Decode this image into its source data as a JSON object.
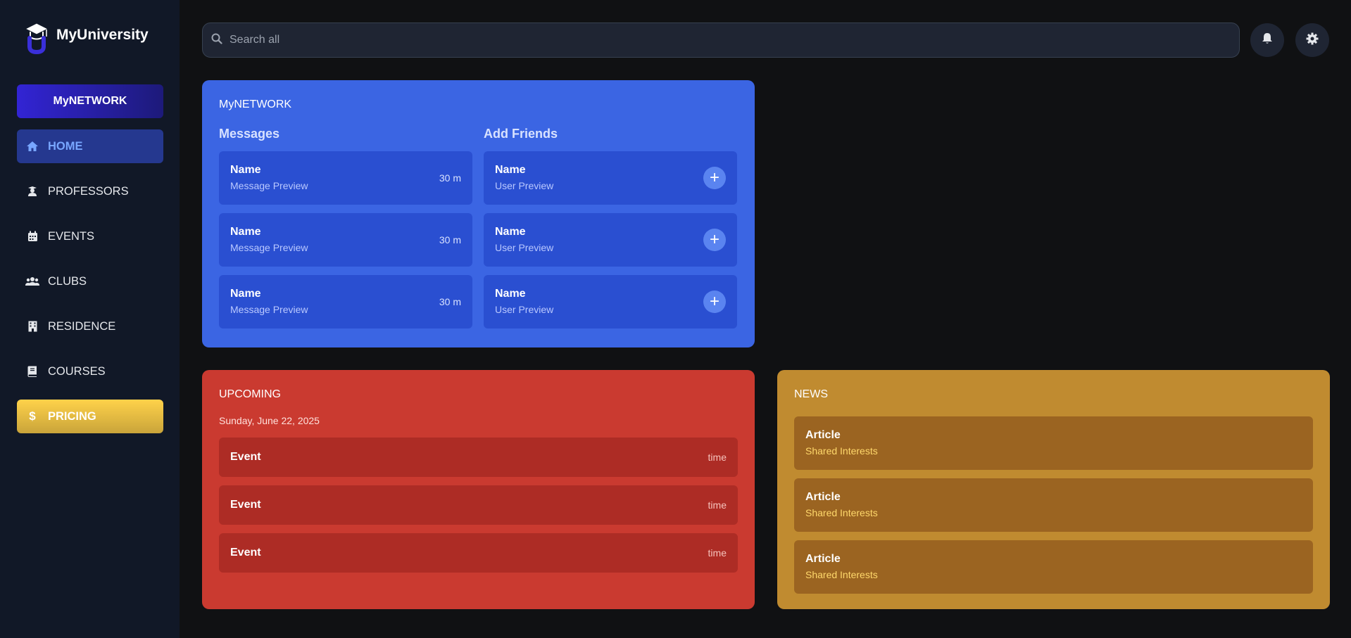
{
  "app": {
    "title": "MyUniversity"
  },
  "sidebar": {
    "network_label": "MyNETWORK",
    "items": [
      {
        "label": "HOME",
        "icon": "home-icon",
        "active": true
      },
      {
        "label": "PROFESSORS",
        "icon": "professor-icon"
      },
      {
        "label": "EVENTS",
        "icon": "calendar-icon"
      },
      {
        "label": "CLUBS",
        "icon": "users-icon"
      },
      {
        "label": "RESIDENCE",
        "icon": "building-icon"
      },
      {
        "label": "COURSES",
        "icon": "book-icon"
      },
      {
        "label": "PRICING",
        "icon": "dollar-icon"
      }
    ]
  },
  "search": {
    "placeholder": "Search all"
  },
  "network": {
    "title": "MyNETWORK",
    "messages_heading": "Messages",
    "friends_heading": "Add Friends",
    "messages": [
      {
        "name": "Name",
        "preview": "Message Preview",
        "time": "30 m"
      },
      {
        "name": "Name",
        "preview": "Message Preview",
        "time": "30 m"
      },
      {
        "name": "Name",
        "preview": "Message Preview",
        "time": "30 m"
      }
    ],
    "friends": [
      {
        "name": "Name",
        "preview": "User Preview",
        "action": "+"
      },
      {
        "name": "Name",
        "preview": "User Preview",
        "action": "+"
      },
      {
        "name": "Name",
        "preview": "User Preview",
        "action": "+"
      }
    ]
  },
  "upcoming": {
    "title": "UPCOMING",
    "date": "Sunday, June 22, 2025",
    "events": [
      {
        "name": "Event",
        "time": "time"
      },
      {
        "name": "Event",
        "time": "time"
      },
      {
        "name": "Event",
        "time": "time"
      }
    ]
  },
  "news": {
    "title": "NEWS",
    "articles": [
      {
        "name": "Article",
        "tag": "Shared Interests"
      },
      {
        "name": "Article",
        "tag": "Shared Interests"
      },
      {
        "name": "Article",
        "tag": "Shared Interests"
      }
    ]
  },
  "colors": {
    "network": "#3b65e3",
    "upcoming": "#ca3a30",
    "news": "#c08b30",
    "sidebar": "#111827"
  }
}
